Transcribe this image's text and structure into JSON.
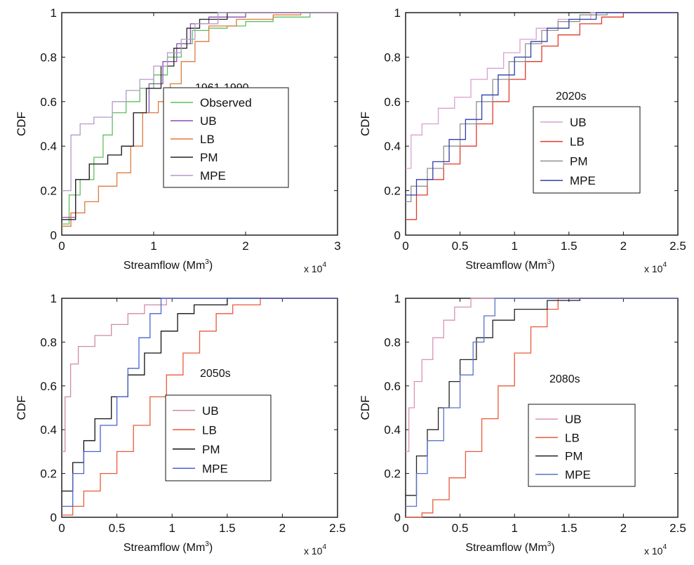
{
  "chart_data": [
    {
      "type": "line",
      "annotation": "1961-1990",
      "xlabel": "Streamflow (Mm³)",
      "xlabel_base": "Streamflow (Mm",
      "xlabel_exp": "3",
      "xlabel_end": ")",
      "ylabel": "CDF",
      "x_multiplier": "x 10⁴",
      "x_multiplier_base": "x 10",
      "x_multiplier_exp": "4",
      "xlim": [
        0,
        3
      ],
      "ylim": [
        0,
        1
      ],
      "xticks": [
        "0",
        "1",
        "2",
        "3"
      ],
      "yticks": [
        "0",
        "0.2",
        "0.4",
        "0.6",
        "0.8",
        "1"
      ],
      "legend_position": "center-right",
      "series": [
        {
          "name": "Observed",
          "color": "#5cc05c",
          "points": [
            [
              0,
              0.05
            ],
            [
              0.08,
              0.18
            ],
            [
              0.2,
              0.25
            ],
            [
              0.35,
              0.35
            ],
            [
              0.45,
              0.45
            ],
            [
              0.55,
              0.55
            ],
            [
              0.7,
              0.6
            ],
            [
              0.85,
              0.66
            ],
            [
              1.0,
              0.72
            ],
            [
              1.15,
              0.8
            ],
            [
              1.3,
              0.86
            ],
            [
              1.42,
              0.92
            ],
            [
              1.6,
              0.93
            ],
            [
              1.8,
              0.94
            ],
            [
              2.0,
              0.96
            ],
            [
              2.3,
              0.98
            ],
            [
              2.7,
              1.0
            ]
          ]
        },
        {
          "name": "UB",
          "color": "#8a4fb0",
          "points": [
            [
              0,
              0.08
            ],
            [
              0.15,
              0.25
            ],
            [
              0.3,
              0.32
            ],
            [
              0.5,
              0.36
            ],
            [
              0.65,
              0.4
            ],
            [
              0.78,
              0.55
            ],
            [
              0.95,
              0.68
            ],
            [
              1.1,
              0.78
            ],
            [
              1.25,
              0.86
            ],
            [
              1.4,
              0.95
            ],
            [
              1.6,
              0.98
            ],
            [
              2.0,
              1.0
            ]
          ]
        },
        {
          "name": "LB",
          "color": "#e07a3c",
          "points": [
            [
              0,
              0.04
            ],
            [
              0.1,
              0.1
            ],
            [
              0.25,
              0.15
            ],
            [
              0.4,
              0.22
            ],
            [
              0.6,
              0.28
            ],
            [
              0.75,
              0.4
            ],
            [
              0.88,
              0.55
            ],
            [
              1.05,
              0.6
            ],
            [
              1.18,
              0.68
            ],
            [
              1.3,
              0.78
            ],
            [
              1.45,
              0.87
            ],
            [
              1.6,
              0.94
            ],
            [
              1.9,
              0.97
            ],
            [
              2.3,
              0.99
            ],
            [
              2.6,
              1.0
            ]
          ]
        },
        {
          "name": "PM",
          "color": "#222222",
          "points": [
            [
              0,
              0.07
            ],
            [
              0.15,
              0.25
            ],
            [
              0.3,
              0.32
            ],
            [
              0.5,
              0.36
            ],
            [
              0.65,
              0.4
            ],
            [
              0.78,
              0.55
            ],
            [
              0.92,
              0.66
            ],
            [
              1.08,
              0.76
            ],
            [
              1.22,
              0.84
            ],
            [
              1.36,
              0.93
            ],
            [
              1.5,
              0.97
            ],
            [
              1.8,
              1.0
            ]
          ]
        },
        {
          "name": "MPE",
          "color": "#b39ac8",
          "points": [
            [
              0,
              0.2
            ],
            [
              0.1,
              0.45
            ],
            [
              0.2,
              0.5
            ],
            [
              0.35,
              0.53
            ],
            [
              0.55,
              0.6
            ],
            [
              0.7,
              0.65
            ],
            [
              0.85,
              0.7
            ],
            [
              1.0,
              0.76
            ],
            [
              1.15,
              0.82
            ],
            [
              1.3,
              0.88
            ],
            [
              1.45,
              0.95
            ],
            [
              1.7,
              1.0
            ]
          ]
        }
      ]
    },
    {
      "type": "line",
      "annotation": "2020s",
      "xlabel": "Streamflow (Mm³)",
      "xlabel_base": "Streamflow (Mm",
      "xlabel_exp": "3",
      "xlabel_end": ")",
      "ylabel": "CDF",
      "x_multiplier": "x 10⁴",
      "x_multiplier_base": "x 10",
      "x_multiplier_exp": "4",
      "xlim": [
        0,
        2.5
      ],
      "ylim": [
        0,
        1
      ],
      "xticks": [
        "0",
        "0.5",
        "1",
        "1.5",
        "2",
        "2.5"
      ],
      "yticks": [
        "0",
        "0.2",
        "0.4",
        "0.6",
        "0.8",
        "1"
      ],
      "legend_position": "center-right",
      "series": [
        {
          "name": "UB",
          "color": "#d8a0d0",
          "points": [
            [
              0,
              0.3
            ],
            [
              0.05,
              0.45
            ],
            [
              0.15,
              0.5
            ],
            [
              0.3,
              0.57
            ],
            [
              0.45,
              0.62
            ],
            [
              0.6,
              0.7
            ],
            [
              0.75,
              0.75
            ],
            [
              0.9,
              0.82
            ],
            [
              1.05,
              0.88
            ],
            [
              1.2,
              0.93
            ],
            [
              1.4,
              0.97
            ],
            [
              1.7,
              1.0
            ]
          ]
        },
        {
          "name": "LB",
          "color": "#e03a2a",
          "points": [
            [
              0,
              0.07
            ],
            [
              0.1,
              0.18
            ],
            [
              0.2,
              0.25
            ],
            [
              0.35,
              0.32
            ],
            [
              0.5,
              0.4
            ],
            [
              0.65,
              0.5
            ],
            [
              0.8,
              0.6
            ],
            [
              0.95,
              0.7
            ],
            [
              1.1,
              0.78
            ],
            [
              1.25,
              0.85
            ],
            [
              1.4,
              0.9
            ],
            [
              1.6,
              0.95
            ],
            [
              1.8,
              0.98
            ],
            [
              2.0,
              1.0
            ]
          ]
        },
        {
          "name": "PM",
          "color": "#909090",
          "points": [
            [
              0,
              0.15
            ],
            [
              0.05,
              0.22
            ],
            [
              0.2,
              0.3
            ],
            [
              0.35,
              0.4
            ],
            [
              0.5,
              0.5
            ],
            [
              0.65,
              0.6
            ],
            [
              0.8,
              0.7
            ],
            [
              0.95,
              0.78
            ],
            [
              1.1,
              0.86
            ],
            [
              1.25,
              0.92
            ],
            [
              1.4,
              0.96
            ],
            [
              1.6,
              0.99
            ],
            [
              1.85,
              1.0
            ]
          ]
        },
        {
          "name": "MPE",
          "color": "#2f3fa8",
          "points": [
            [
              0,
              0.18
            ],
            [
              0.1,
              0.25
            ],
            [
              0.25,
              0.33
            ],
            [
              0.4,
              0.43
            ],
            [
              0.55,
              0.52
            ],
            [
              0.7,
              0.63
            ],
            [
              0.85,
              0.72
            ],
            [
              1.0,
              0.8
            ],
            [
              1.15,
              0.87
            ],
            [
              1.3,
              0.93
            ],
            [
              1.5,
              0.97
            ],
            [
              1.75,
              1.0
            ]
          ]
        }
      ]
    },
    {
      "type": "line",
      "annotation": "2050s",
      "xlabel": "Streamflow (Mm³)",
      "xlabel_base": "Streamflow (Mm",
      "xlabel_exp": "3",
      "xlabel_end": ")",
      "ylabel": "CDF",
      "x_multiplier": "x 10⁴",
      "x_multiplier_base": "x 10",
      "x_multiplier_exp": "4",
      "xlim": [
        0,
        2.5
      ],
      "ylim": [
        0,
        1
      ],
      "xticks": [
        "0",
        "0.5",
        "1",
        "1.5",
        "2",
        "2.5"
      ],
      "yticks": [
        "0",
        "0.2",
        "0.4",
        "0.6",
        "0.8",
        "1"
      ],
      "legend_position": "bottom-right",
      "series": [
        {
          "name": "UB",
          "color": "#d08aa8",
          "points": [
            [
              0,
              0.3
            ],
            [
              0.03,
              0.55
            ],
            [
              0.08,
              0.7
            ],
            [
              0.15,
              0.78
            ],
            [
              0.3,
              0.83
            ],
            [
              0.45,
              0.88
            ],
            [
              0.6,
              0.93
            ],
            [
              0.75,
              0.97
            ],
            [
              0.95,
              1.0
            ]
          ]
        },
        {
          "name": "LB",
          "color": "#e85a3a",
          "points": [
            [
              0,
              0.01
            ],
            [
              0.1,
              0.05
            ],
            [
              0.2,
              0.12
            ],
            [
              0.35,
              0.2
            ],
            [
              0.5,
              0.3
            ],
            [
              0.65,
              0.42
            ],
            [
              0.8,
              0.55
            ],
            [
              0.95,
              0.65
            ],
            [
              1.1,
              0.75
            ],
            [
              1.25,
              0.85
            ],
            [
              1.4,
              0.93
            ],
            [
              1.55,
              0.97
            ],
            [
              1.8,
              1.0
            ]
          ]
        },
        {
          "name": "PM",
          "color": "#111111",
          "points": [
            [
              0,
              0.12
            ],
            [
              0.1,
              0.25
            ],
            [
              0.2,
              0.35
            ],
            [
              0.3,
              0.45
            ],
            [
              0.45,
              0.55
            ],
            [
              0.6,
              0.65
            ],
            [
              0.75,
              0.75
            ],
            [
              0.9,
              0.85
            ],
            [
              1.05,
              0.93
            ],
            [
              1.2,
              0.97
            ],
            [
              1.5,
              1.0
            ]
          ]
        },
        {
          "name": "MPE",
          "color": "#4a62d0",
          "points": [
            [
              0,
              0.05
            ],
            [
              0.1,
              0.2
            ],
            [
              0.2,
              0.3
            ],
            [
              0.35,
              0.42
            ],
            [
              0.5,
              0.55
            ],
            [
              0.6,
              0.68
            ],
            [
              0.7,
              0.82
            ],
            [
              0.8,
              0.93
            ],
            [
              0.9,
              1.0
            ]
          ]
        }
      ]
    },
    {
      "type": "line",
      "annotation": "2080s",
      "xlabel": "Streamflow (Mm³)",
      "xlabel_base": "Streamflow (Mm",
      "xlabel_exp": "3",
      "xlabel_end": ")",
      "ylabel": "CDF",
      "x_multiplier": "x 10⁴",
      "x_multiplier_base": "x 10",
      "x_multiplier_exp": "4",
      "xlim": [
        0,
        2.5
      ],
      "ylim": [
        0,
        1
      ],
      "xticks": [
        "0",
        "0.5",
        "1",
        "1.5",
        "2",
        "2.5"
      ],
      "yticks": [
        "0",
        "0.2",
        "0.4",
        "0.6",
        "0.8",
        "1"
      ],
      "legend_position": "bottom-right",
      "series": [
        {
          "name": "UB",
          "color": "#d893b8",
          "points": [
            [
              0,
              0.3
            ],
            [
              0.03,
              0.5
            ],
            [
              0.08,
              0.62
            ],
            [
              0.15,
              0.72
            ],
            [
              0.25,
              0.82
            ],
            [
              0.35,
              0.9
            ],
            [
              0.45,
              0.96
            ],
            [
              0.6,
              1.0
            ]
          ]
        },
        {
          "name": "LB",
          "color": "#e85a3a",
          "points": [
            [
              0,
              0.0
            ],
            [
              0.15,
              0.02
            ],
            [
              0.25,
              0.08
            ],
            [
              0.4,
              0.18
            ],
            [
              0.55,
              0.3
            ],
            [
              0.7,
              0.45
            ],
            [
              0.85,
              0.6
            ],
            [
              1.0,
              0.75
            ],
            [
              1.15,
              0.87
            ],
            [
              1.3,
              0.95
            ],
            [
              1.4,
              1.0
            ]
          ]
        },
        {
          "name": "PM",
          "color": "#222222",
          "points": [
            [
              0,
              0.1
            ],
            [
              0.1,
              0.28
            ],
            [
              0.2,
              0.4
            ],
            [
              0.3,
              0.5
            ],
            [
              0.4,
              0.62
            ],
            [
              0.5,
              0.72
            ],
            [
              0.65,
              0.82
            ],
            [
              0.8,
              0.9
            ],
            [
              1.0,
              0.95
            ],
            [
              1.3,
              0.99
            ],
            [
              1.6,
              1.0
            ]
          ]
        },
        {
          "name": "MPE",
          "color": "#5a72c8",
          "points": [
            [
              0,
              0.05
            ],
            [
              0.1,
              0.2
            ],
            [
              0.2,
              0.35
            ],
            [
              0.35,
              0.5
            ],
            [
              0.5,
              0.65
            ],
            [
              0.62,
              0.8
            ],
            [
              0.72,
              0.92
            ],
            [
              0.82,
              1.0
            ]
          ]
        }
      ]
    }
  ]
}
